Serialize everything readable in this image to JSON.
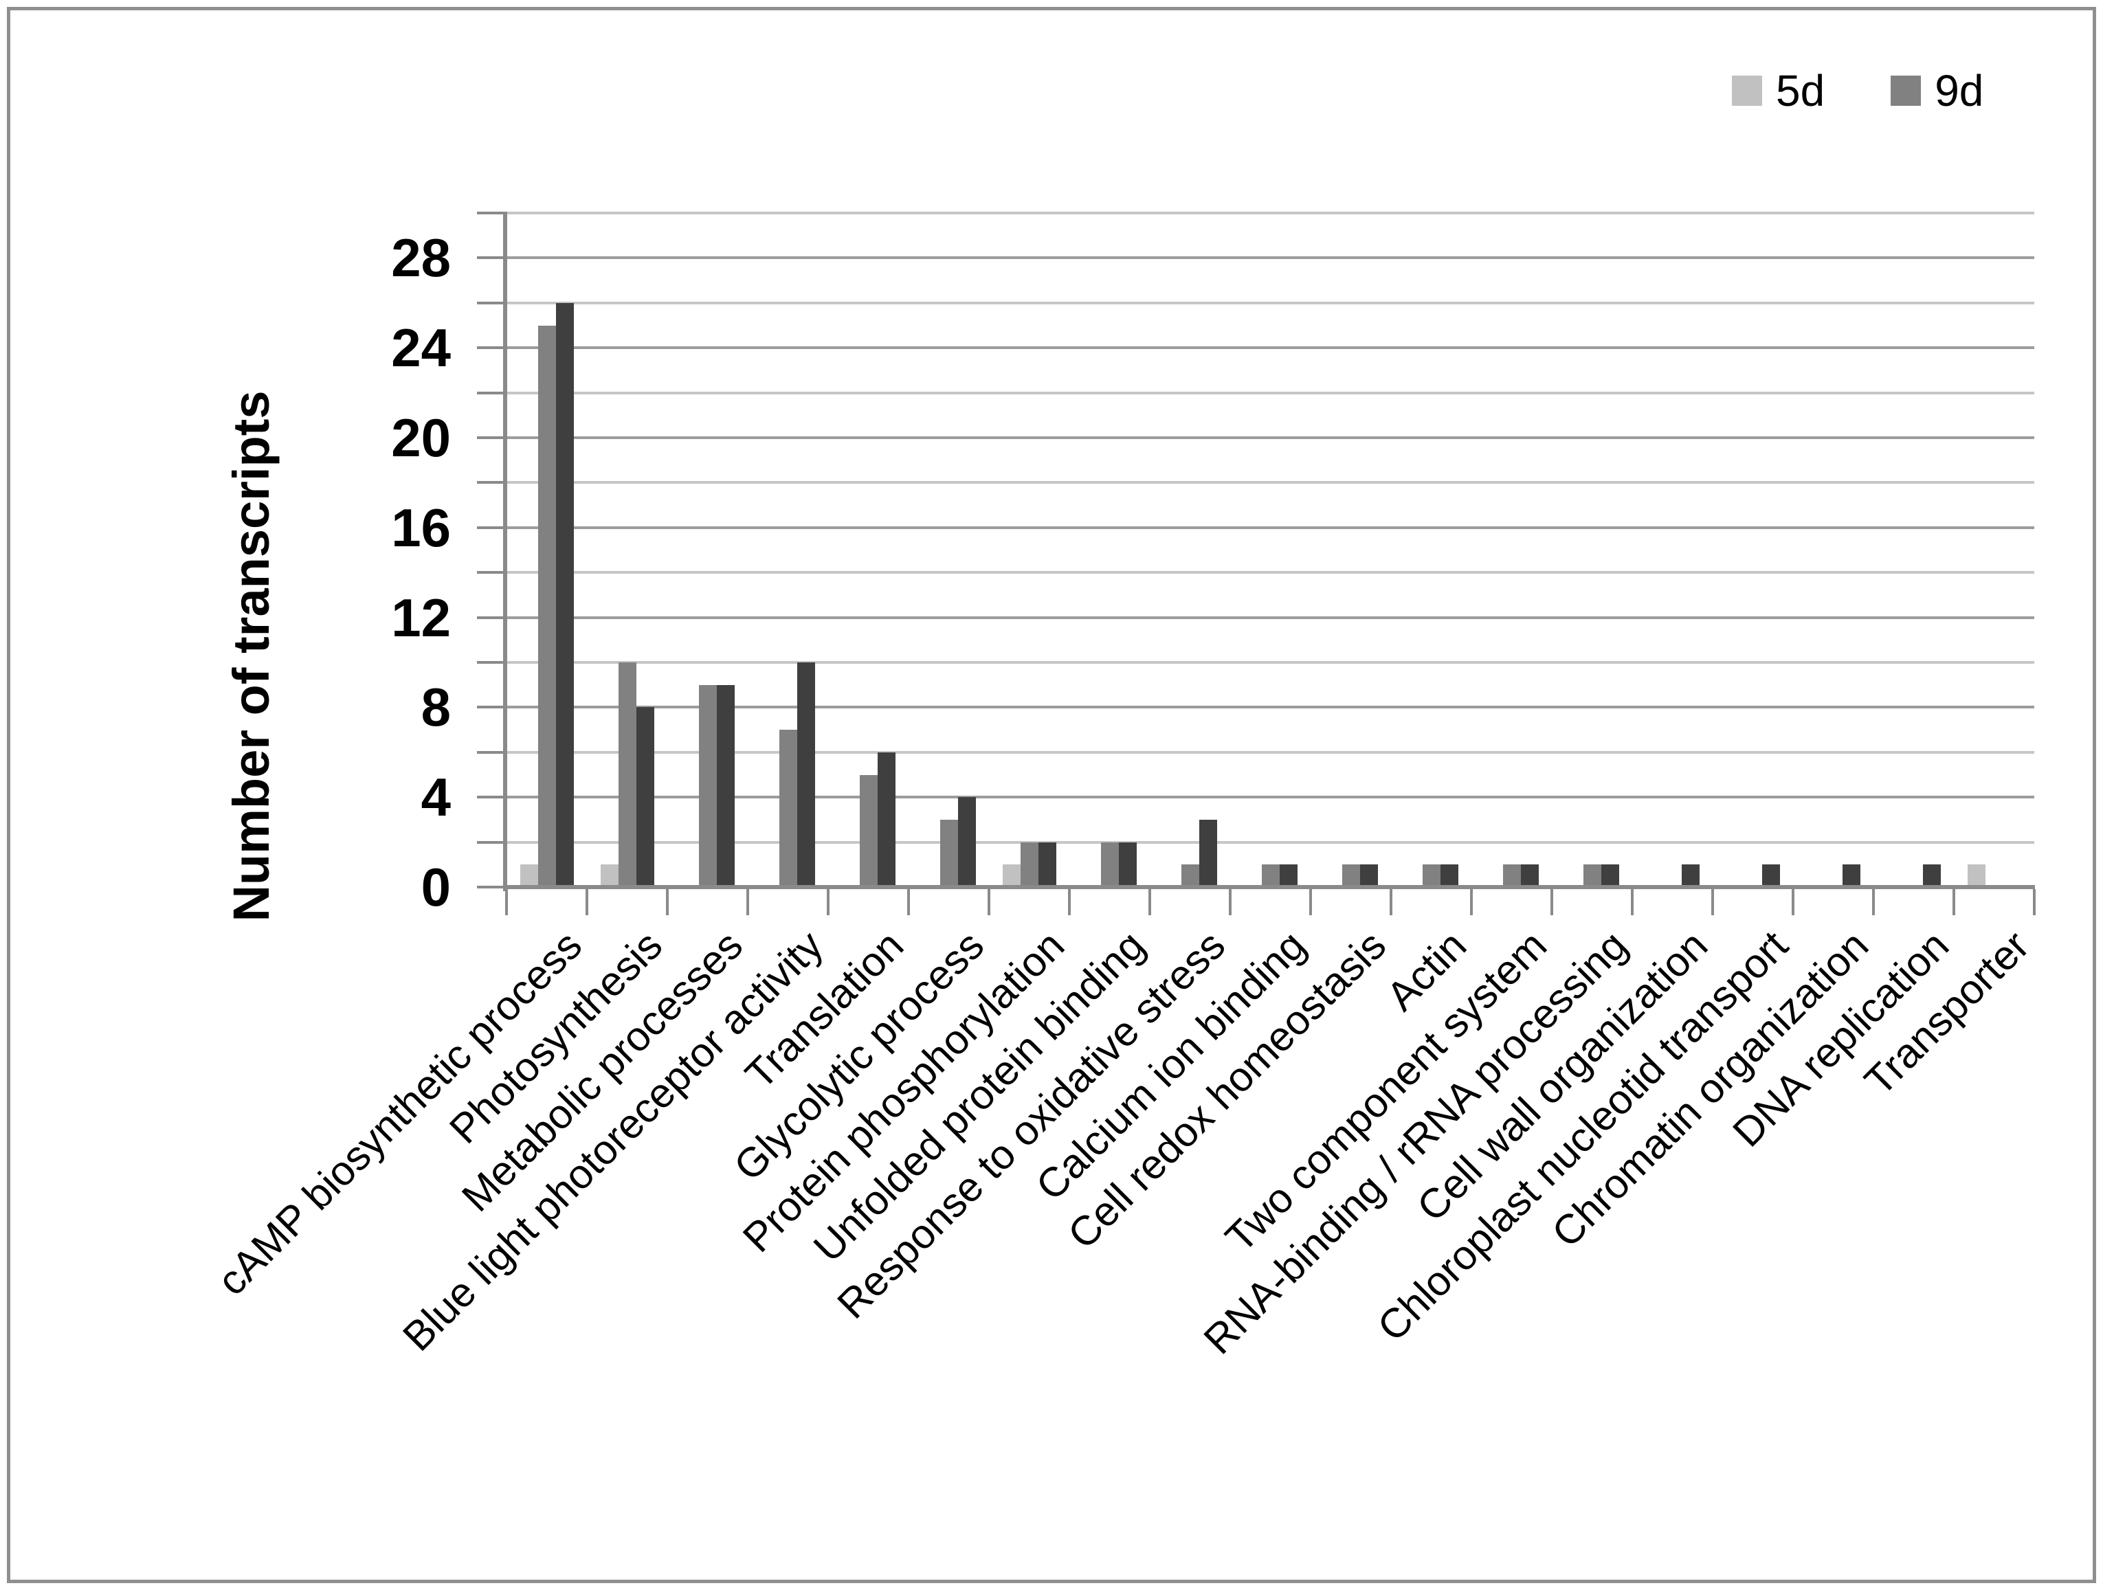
{
  "legend": {
    "items": [
      {
        "label": "5d",
        "color": "#c1c1c1"
      },
      {
        "label": "9d",
        "color": "#818181"
      }
    ]
  },
  "chart_data": {
    "type": "bar",
    "title": "",
    "xlabel": "",
    "ylabel": "Number of transcripts",
    "ylim": [
      0,
      30
    ],
    "ytick_step_labeled": 4,
    "ytick_labels": [
      0,
      4,
      8,
      12,
      16,
      20,
      24,
      28
    ],
    "grid": "horizontal every 2 units; darker line every 4 units; top line at 30",
    "legend_position": "top-right",
    "categories": [
      "cAMP biosynthetic process",
      "Photosynthesis",
      "Metabolic processes",
      "Blue light photoreceptor activity",
      "Translation",
      "Glycolytic process",
      "Protein phosphorylation",
      "Unfolded protein binding",
      "Response to oxidative stress",
      "Calcium ion binding",
      "Cell redox homeostasis",
      "Actin",
      "Two component system",
      "RNA-binding / rRNA processing",
      "Cell wall organization",
      "Chloroplast nucleotid transport",
      "Chromatin organization",
      "DNA replication",
      "Transporter"
    ],
    "series": [
      {
        "name": "5d",
        "color": "#c1c1c1",
        "values": [
          1,
          1,
          0,
          0,
          0,
          0,
          1,
          0,
          0,
          0,
          0,
          0,
          0,
          0,
          0,
          0,
          0,
          0,
          1
        ]
      },
      {
        "name": "9d",
        "color": "#818181",
        "values": [
          25,
          10,
          9,
          7,
          5,
          3,
          2,
          2,
          1,
          1,
          1,
          1,
          1,
          1,
          0,
          0,
          0,
          0,
          0
        ]
      },
      {
        "name": "",
        "color": "#3f3f3f",
        "values": [
          26,
          8,
          9,
          10,
          6,
          4,
          2,
          2,
          3,
          1,
          1,
          1,
          1,
          1,
          1,
          1,
          1,
          1,
          0
        ]
      }
    ],
    "colors": {
      "axis": "#8a8a8a",
      "grid_major": "#9c9c9c",
      "grid_minor": "#c6c6c6",
      "frame": "#8f8f8f"
    }
  }
}
